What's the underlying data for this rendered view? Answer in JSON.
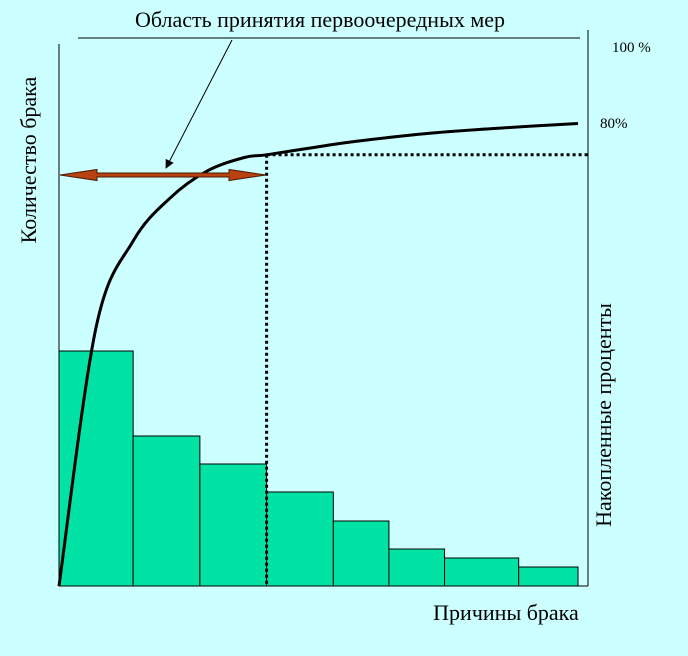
{
  "colors": {
    "background": "#ccffff",
    "bar_fill": "#00e3a5",
    "arrow_fill": "#b84210"
  },
  "chart_data": {
    "type": "bar",
    "title": "",
    "xlabel": "Причины брака",
    "ylabel": "Количество брака",
    "y2label": "Накопленные проценты",
    "bars": [
      {
        "x0": 0,
        "x1": 1.0,
        "value": 235
      },
      {
        "x0": 1.0,
        "x1": 1.9,
        "value": 150
      },
      {
        "x0": 1.9,
        "x1": 2.8,
        "value": 122
      },
      {
        "x0": 2.8,
        "x1": 3.7,
        "value": 94
      },
      {
        "x0": 3.7,
        "x1": 4.45,
        "value": 65
      },
      {
        "x0": 4.45,
        "x1": 5.2,
        "value": 37
      },
      {
        "x0": 5.2,
        "x1": 6.2,
        "value": 28
      },
      {
        "x0": 6.2,
        "x1": 7.0,
        "value": 19
      }
    ],
    "xlim": [
      0,
      7.0
    ],
    "ylim": [
      0,
      540
    ],
    "cumulative_curve": {
      "x": [
        0,
        0.5,
        1.0,
        1.5,
        2.0,
        2.5,
        2.8,
        3.5,
        4.0,
        5.0,
        6.0,
        7.0
      ],
      "y": [
        0,
        48,
        64,
        72,
        77,
        79.5,
        80,
        81.5,
        82.5,
        84,
        85,
        85.8
      ]
    },
    "threshold": {
      "label": "80%",
      "x": 2.8,
      "y": 80
    },
    "top_label": "100 %",
    "annotation": "Область принятия первоочередных мер"
  }
}
